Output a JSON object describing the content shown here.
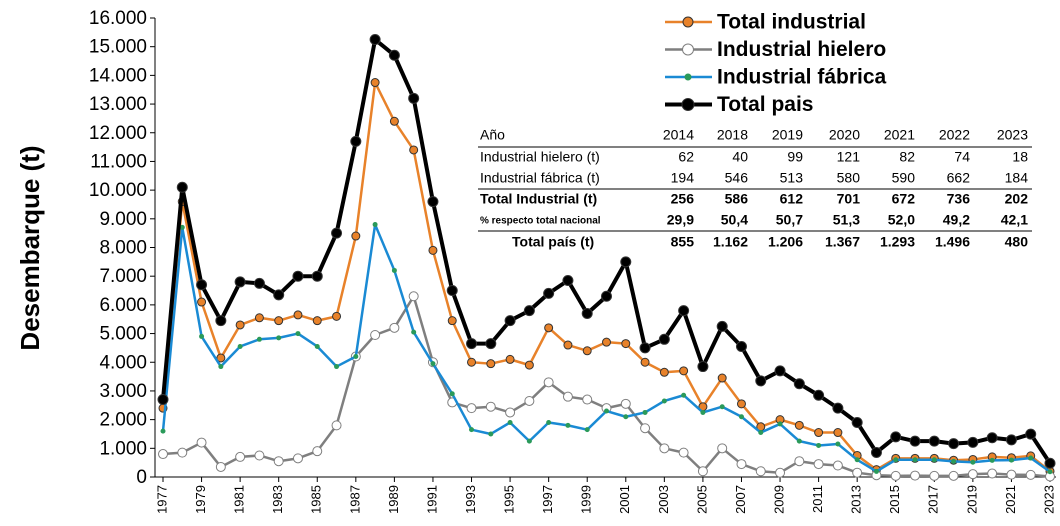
{
  "chart_data": {
    "type": "line",
    "ylabel": "Desembarque (t)",
    "x": [
      1977,
      1978,
      1979,
      1980,
      1981,
      1982,
      1983,
      1984,
      1985,
      1986,
      1987,
      1988,
      1989,
      1990,
      1991,
      1992,
      1993,
      1994,
      1995,
      1996,
      1997,
      1998,
      1999,
      2000,
      2001,
      2002,
      2003,
      2004,
      2005,
      2006,
      2007,
      2008,
      2009,
      2010,
      2011,
      2012,
      2013,
      2014,
      2015,
      2016,
      2017,
      2018,
      2019,
      2020,
      2021,
      2022,
      2023
    ],
    "xlim": [
      1977,
      2023
    ],
    "xticks": [
      1977,
      1979,
      1981,
      1983,
      1985,
      1987,
      1989,
      1991,
      1993,
      1995,
      1997,
      1999,
      2001,
      2003,
      2005,
      2007,
      2009,
      2011,
      2013,
      2015,
      2017,
      2019,
      2021,
      2023
    ],
    "ylim": [
      0,
      16000
    ],
    "yticks": [
      0,
      {
        "value": 1000,
        "label": "1.000"
      },
      {
        "value": 2000,
        "label": "2.000"
      },
      {
        "value": 3000,
        "label": "3.000"
      },
      {
        "value": 4000,
        "label": "4.000"
      },
      {
        "value": 5000,
        "label": "5.000"
      },
      {
        "value": 6000,
        "label": "6.000"
      },
      {
        "value": 7000,
        "label": "7.000"
      },
      {
        "value": 8000,
        "label": "8.000"
      },
      {
        "value": 9000,
        "label": "9.000"
      },
      {
        "value": 10000,
        "label": "10.000"
      },
      {
        "value": 11000,
        "label": "11.000"
      },
      {
        "value": 12000,
        "label": "12.000"
      },
      {
        "value": 13000,
        "label": "13.000"
      },
      {
        "value": 14000,
        "label": "14.000"
      },
      {
        "value": 15000,
        "label": "15.000"
      },
      {
        "value": 16000,
        "label": "16.000"
      }
    ],
    "grid": false,
    "legend": "top-right",
    "series": [
      {
        "name": "Total industrial",
        "color": "#e8822a",
        "marker_fill": "#e8822a",
        "values": [
          2400,
          9600,
          6100,
          4150,
          5300,
          5550,
          5450,
          5650,
          5450,
          5600,
          8400,
          13750,
          12400,
          11400,
          7900,
          5450,
          4000,
          3950,
          4100,
          3900,
          5200,
          4600,
          4400,
          4700,
          4650,
          4000,
          3650,
          3700,
          2450,
          3450,
          2550,
          1750,
          2000,
          1800,
          1550,
          1550,
          750,
          256,
          650,
          650,
          650,
          586,
          612,
          701,
          672,
          736,
          202
        ]
      },
      {
        "name": "Industrial hielero",
        "color": "#7f7f7f",
        "marker_fill": "#ffffff",
        "values": [
          800,
          850,
          1200,
          350,
          700,
          750,
          550,
          650,
          900,
          1800,
          4200,
          4950,
          5200,
          6300,
          4000,
          2600,
          2400,
          2450,
          2250,
          2650,
          3300,
          2800,
          2700,
          2400,
          2550,
          1700,
          1000,
          850,
          200,
          1000,
          450,
          200,
          150,
          550,
          450,
          400,
          150,
          62,
          40,
          50,
          40,
          40,
          99,
          121,
          82,
          74,
          18
        ]
      },
      {
        "name": "Industrial fábrica",
        "color": "#1a8ad4",
        "marker_fill": "#2a9a5a",
        "values": [
          1600,
          8700,
          4900,
          3850,
          4550,
          4800,
          4850,
          5000,
          4550,
          3850,
          4200,
          8800,
          7200,
          5050,
          3950,
          2900,
          1650,
          1500,
          1900,
          1250,
          1900,
          1800,
          1650,
          2300,
          2100,
          2250,
          2650,
          2850,
          2250,
          2450,
          2100,
          1550,
          1850,
          1250,
          1100,
          1150,
          600,
          194,
          600,
          600,
          600,
          546,
          513,
          580,
          590,
          662,
          184
        ]
      },
      {
        "name": "Total pais",
        "color": "#000000",
        "marker_fill": "#000000",
        "values": [
          2700,
          10100,
          6700,
          5450,
          6800,
          6750,
          6350,
          7000,
          7000,
          8500,
          11700,
          15250,
          14700,
          13200,
          9600,
          6500,
          4650,
          4650,
          5450,
          5800,
          6400,
          6850,
          5700,
          6300,
          7500,
          4500,
          4800,
          5800,
          3850,
          5250,
          4550,
          3350,
          3700,
          3250,
          2850,
          2400,
          1900,
          855,
          1400,
          1250,
          1250,
          1162,
          1206,
          1367,
          1293,
          1496,
          480
        ]
      }
    ],
    "table": {
      "columns": [
        "Año",
        "2014",
        "2018",
        "2019",
        "2020",
        "2021",
        "2022",
        "2023"
      ],
      "rows": [
        [
          "Industrial hielero (t)",
          "62",
          "40",
          "99",
          "121",
          "82",
          "74",
          "18"
        ],
        [
          "Industrial fábrica (t)",
          "194",
          "546",
          "513",
          "580",
          "590",
          "662",
          "184"
        ],
        [
          "Total Industrial (t)",
          "256",
          "586",
          "612",
          "701",
          "672",
          "736",
          "202"
        ],
        [
          "% respecto total nacional",
          "29,9",
          "50,4",
          "50,7",
          "51,3",
          "52,0",
          "49,2",
          "42,1"
        ],
        [
          "Total país (t)",
          "855",
          "1.162",
          "1.206",
          "1.367",
          "1.293",
          "1.496",
          "480"
        ]
      ]
    }
  }
}
